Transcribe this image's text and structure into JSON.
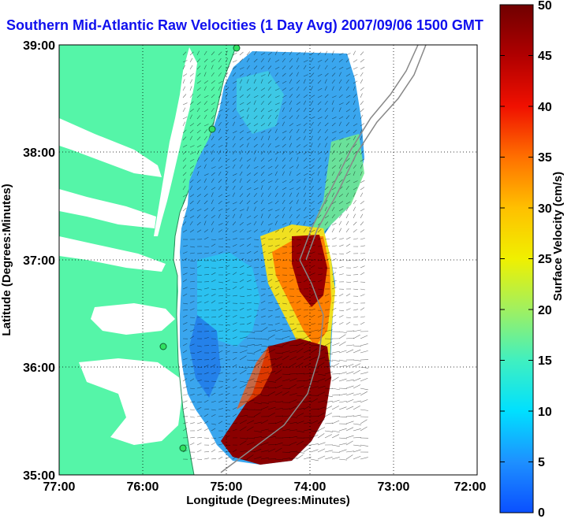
{
  "title": "Southern Mid-Atlantic Raw Velocities (1 Day Avg) 2007/09/06 1500 GMT",
  "axes": {
    "xlabel": "Longitude (Degrees:Minutes)",
    "ylabel": "Latitude (Degrees:Minutes)",
    "xticks": [
      "77:00",
      "76:00",
      "75:00",
      "74:00",
      "73:00",
      "72:00"
    ],
    "yticks": [
      "39:00",
      "38:00",
      "37:00",
      "36:00",
      "35:00"
    ]
  },
  "colorbar": {
    "label": "Surface Velocity (cm/s)",
    "ticks": [
      "0",
      "5",
      "10",
      "15",
      "20",
      "25",
      "30",
      "35",
      "40",
      "45",
      "50"
    ],
    "range": [
      0,
      50
    ]
  },
  "colors": {
    "title": "#1010ee",
    "land": "#55f5a8",
    "velocity_low": "#0070ff",
    "velocity_high": "#800000"
  }
}
